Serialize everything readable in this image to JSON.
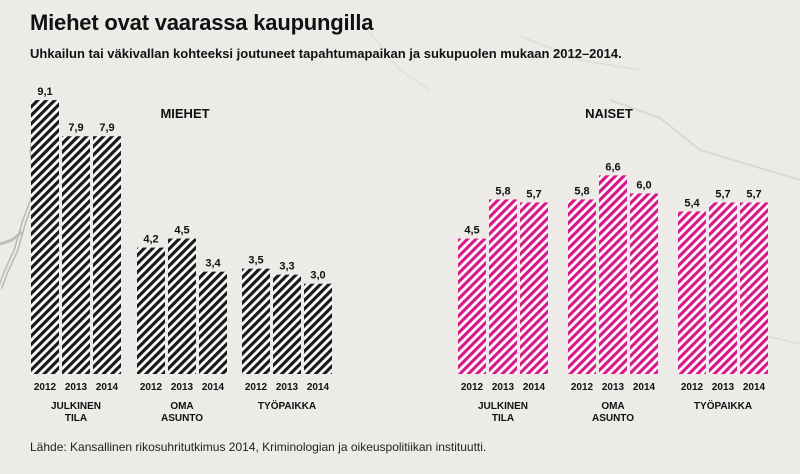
{
  "title": "Miehet ovat vaarassa kaupungilla",
  "subtitle": "Uhkailun tai väkivallan kohteeksi joutuneet tapahtumapaikan ja sukupuolen mukaan 2012–2014.",
  "source": "Lähde: Kansallinen rikosuhritutkimus 2014, Kriminologian ja oikeuspolitiikan instituutti.",
  "colors": {
    "men": "#1a1a1a",
    "women": "#d81b8c",
    "background": "#ecebe8"
  },
  "chart_data": [
    {
      "type": "bar",
      "panel": "MIEHET",
      "years": [
        "2012",
        "2013",
        "2014"
      ],
      "categories": [
        "JULKINEN TILA",
        "OMA ASUNTO",
        "TYÖPAIKKA"
      ],
      "category_lines": [
        [
          "JULKINEN",
          "TILA"
        ],
        [
          "OMA",
          "ASUNTO"
        ],
        [
          "TYÖPAIKKA"
        ]
      ],
      "values": [
        [
          9.1,
          7.9,
          7.9
        ],
        [
          4.2,
          4.5,
          3.4
        ],
        [
          3.5,
          3.3,
          3.0
        ]
      ],
      "value_labels": [
        [
          "9,1",
          "7,9",
          "7,9"
        ],
        [
          "4,2",
          "4,5",
          "3,4"
        ],
        [
          "3,5",
          "3,3",
          "3,0"
        ]
      ],
      "color": "#1a1a1a"
    },
    {
      "type": "bar",
      "panel": "NAISET",
      "years": [
        "2012",
        "2013",
        "2014"
      ],
      "categories": [
        "JULKINEN TILA",
        "OMA ASUNTO",
        "TYÖPAIKKA"
      ],
      "category_lines": [
        [
          "JULKINEN",
          "TILA"
        ],
        [
          "OMA",
          "ASUNTO"
        ],
        [
          "TYÖPAIKKA"
        ]
      ],
      "values": [
        [
          4.5,
          5.8,
          5.7
        ],
        [
          5.8,
          6.6,
          6.0
        ],
        [
          5.4,
          5.7,
          5.7
        ]
      ],
      "value_labels": [
        [
          "4,5",
          "5,8",
          "5,7"
        ],
        [
          "5,8",
          "6,6",
          "6,0"
        ],
        [
          "5,4",
          "5,7",
          "5,7"
        ]
      ],
      "color": "#d81b8c"
    }
  ]
}
